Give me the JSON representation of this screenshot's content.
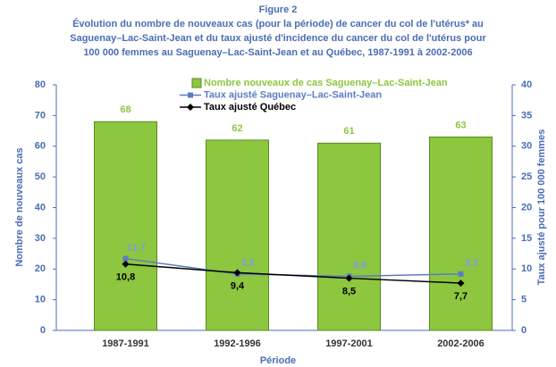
{
  "chart_data": {
    "type": "bar",
    "title": "Figure 2",
    "subtitle": [
      "Évolution du nombre de nouveaux cas (pour la période) de cancer du col de l'utérus* au",
      "Saguenay–Lac-Saint-Jean et du taux ajusté d'incidence du cancer du col de l'utérus pour",
      "100 000 femmes au Saguenay–Lac-Saint-Jean et au Québec, 1987-1991 à 2002-2006"
    ],
    "x_label": "Période",
    "y_label": "Nombre de nouveaux cas",
    "y2_label": "Taux ajusté pour 100 000 femmes",
    "categories": [
      "1987-1991",
      "1992-1996",
      "1997-2001",
      "2002-2006"
    ],
    "series": [
      {
        "name": "Nombre nouveaux de cas Saguenay–Lac-Saint-Jean",
        "type": "bar",
        "color": "#8dc63f",
        "values": [
          68,
          62,
          61,
          63
        ]
      },
      {
        "name": "Taux ajusté Saguenay–Lac-Saint-Jean",
        "type": "line",
        "axis": "y2",
        "marker": "square",
        "color": "#5b7cc4",
        "values": [
          11.7,
          9.2,
          8.8,
          9.2
        ],
        "value_labels": [
          "11,7",
          "9,2",
          "8,8",
          "9,2"
        ]
      },
      {
        "name": "Taux ajusté Québec",
        "type": "line",
        "axis": "y2",
        "marker": "diamond",
        "color": "#000000",
        "values": [
          10.8,
          9.4,
          8.5,
          7.7
        ],
        "value_labels": [
          "10,8",
          "9,4",
          "8,5",
          "7,7"
        ]
      }
    ],
    "ylim": [
      0,
      80
    ],
    "yticks": [
      0,
      10,
      20,
      30,
      40,
      50,
      60,
      70,
      80
    ],
    "y2lim": [
      0,
      40
    ],
    "y2ticks": [
      0,
      5,
      10,
      15,
      20,
      25,
      30,
      35,
      40
    ],
    "legend": "top",
    "grid": false
  }
}
